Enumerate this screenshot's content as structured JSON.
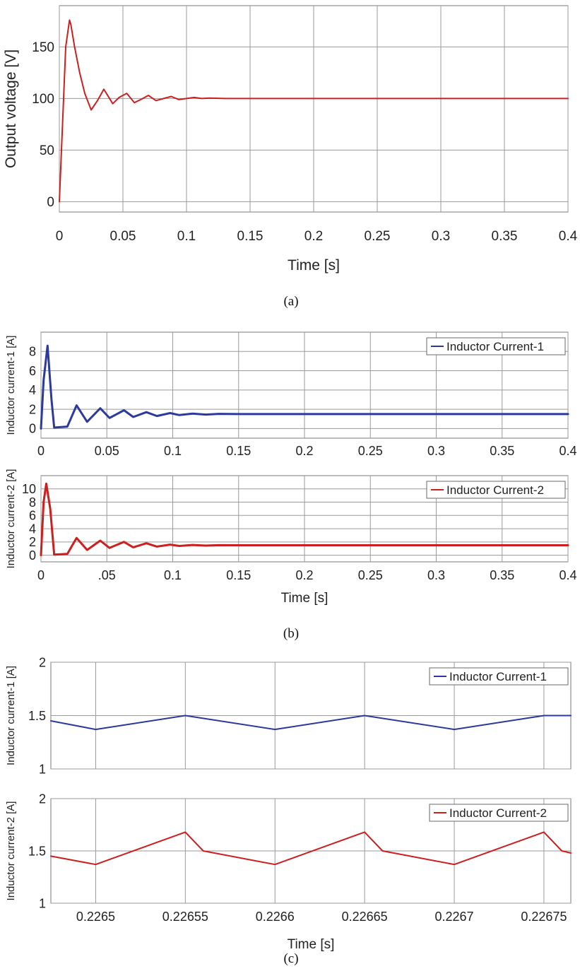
{
  "captions": {
    "a": "(a)",
    "b": "(b)",
    "c": "(c)"
  },
  "colors": {
    "red": "#cc1f1f",
    "blue": "#2b3a9c"
  },
  "chart_data": [
    {
      "id": "a",
      "type": "line",
      "title": "",
      "xlabel": "Time [s]",
      "ylabel": "Output voltage [V]",
      "xlim": [
        0,
        0.4
      ],
      "ylim": [
        -10,
        190
      ],
      "xticks": [
        0,
        0.05,
        0.1,
        0.15,
        0.2,
        0.25,
        0.3,
        0.35,
        0.4
      ],
      "xtick_labels": [
        "0",
        "0.05",
        "0.1",
        "0.15",
        "0.2",
        "0.25",
        "0.3",
        "0.35",
        "0.4"
      ],
      "yticks": [
        0,
        50,
        100,
        150
      ],
      "ytick_labels": [
        "0",
        "50",
        "100",
        "150"
      ],
      "legend": null,
      "series": [
        {
          "name": "Output voltage",
          "color": "#cc1f1f",
          "x": [
            0,
            0.002,
            0.005,
            0.008,
            0.009,
            0.012,
            0.016,
            0.02,
            0.025,
            0.03,
            0.035,
            0.042,
            0.047,
            0.053,
            0.059,
            0.064,
            0.07,
            0.076,
            0.082,
            0.088,
            0.094,
            0.1,
            0.106,
            0.112,
            0.118,
            0.13,
            0.15,
            0.2,
            0.3,
            0.4
          ],
          "y": [
            0,
            60,
            150,
            176,
            172,
            150,
            125,
            105,
            89,
            98,
            109,
            95,
            101,
            105,
            96,
            99,
            103,
            98,
            100,
            102,
            99,
            100,
            101,
            100,
            100.5,
            100,
            100,
            100,
            100,
            100
          ]
        }
      ]
    },
    {
      "id": "b1",
      "type": "line",
      "title": "",
      "xlabel": "",
      "ylabel": "Inductor current-1 [A]",
      "xlim": [
        0,
        0.4
      ],
      "ylim": [
        -1,
        10
      ],
      "xticks": [
        0,
        0.05,
        0.1,
        0.15,
        0.2,
        0.25,
        0.3,
        0.35,
        0.4
      ],
      "xtick_labels": [
        "0",
        "0.05",
        "0.1",
        "0.15",
        "0.2",
        "0.25",
        "0.3",
        "0.35",
        "0.4"
      ],
      "yticks": [
        0,
        2,
        4,
        6,
        8
      ],
      "ytick_labels": [
        "0",
        "2",
        "4",
        "6",
        "8"
      ],
      "legend": "Inductor Current-1",
      "legend_position": "top-right",
      "series": [
        {
          "name": "Inductor Current-1",
          "color": "#2b3a9c",
          "x": [
            0,
            0.002,
            0.005,
            0.008,
            0.01,
            0.02,
            0.027,
            0.035,
            0.045,
            0.052,
            0.063,
            0.07,
            0.08,
            0.088,
            0.098,
            0.105,
            0.115,
            0.125,
            0.135,
            0.15,
            0.2,
            0.3,
            0.4
          ],
          "y": [
            0,
            5,
            8.6,
            3,
            0.1,
            0.2,
            2.4,
            0.7,
            2.1,
            1.1,
            1.9,
            1.2,
            1.7,
            1.3,
            1.6,
            1.4,
            1.55,
            1.45,
            1.52,
            1.5,
            1.5,
            1.5,
            1.5
          ]
        }
      ]
    },
    {
      "id": "b2",
      "type": "line",
      "title": "",
      "xlabel": "Time [s]",
      "ylabel": "Inductor current-2 [A]",
      "xlim": [
        0,
        0.4
      ],
      "ylim": [
        -1,
        12
      ],
      "xticks": [
        0,
        0.05,
        0.1,
        0.15,
        0.2,
        0.25,
        0.3,
        0.35,
        0.4
      ],
      "xtick_labels": [
        "0",
        ".05",
        "0.1",
        "0.15",
        "0.2",
        "0.25",
        "0.3",
        "0.35",
        "0.4"
      ],
      "yticks": [
        0,
        2,
        4,
        6,
        8,
        10
      ],
      "ytick_labels": [
        "0",
        "2",
        "4",
        "6",
        "8",
        "10"
      ],
      "legend": "Inductor Current-2",
      "legend_position": "top-right",
      "series": [
        {
          "name": "Inductor Current-2",
          "color": "#cc1f1f",
          "x": [
            0,
            0.002,
            0.004,
            0.007,
            0.01,
            0.02,
            0.027,
            0.035,
            0.045,
            0.052,
            0.063,
            0.07,
            0.08,
            0.088,
            0.098,
            0.105,
            0.115,
            0.125,
            0.135,
            0.15,
            0.2,
            0.3,
            0.4
          ],
          "y": [
            0,
            8,
            10.8,
            7,
            0.1,
            0.2,
            2.6,
            0.8,
            2.2,
            1.1,
            2.0,
            1.2,
            1.8,
            1.3,
            1.6,
            1.4,
            1.55,
            1.45,
            1.52,
            1.5,
            1.5,
            1.5,
            1.5
          ]
        }
      ]
    },
    {
      "id": "c1",
      "type": "line",
      "title": "",
      "xlabel": "",
      "ylabel": "Inductor current-1 [A]",
      "xlim": [
        0.226475,
        0.226765
      ],
      "ylim": [
        1,
        2
      ],
      "xticks": [
        0.2265,
        0.22655,
        0.2266,
        0.22665,
        0.2267,
        0.22675
      ],
      "xtick_labels": [],
      "yticks": [
        1,
        1.5,
        2
      ],
      "ytick_labels": [
        "1",
        "1.5",
        "2"
      ],
      "legend": "Inductor Current-1",
      "legend_position": "top-right",
      "series": [
        {
          "name": "Inductor Current-1",
          "color": "#2b3a9c",
          "x": [
            0.226475,
            0.2265,
            0.22655,
            0.2266,
            0.22665,
            0.2267,
            0.22675,
            0.226765
          ],
          "y": [
            1.45,
            1.37,
            1.5,
            1.37,
            1.5,
            1.37,
            1.5,
            1.5
          ]
        }
      ]
    },
    {
      "id": "c2",
      "type": "line",
      "title": "",
      "xlabel": "Time [s]",
      "ylabel": "Inductor current-2 [A]",
      "xlim": [
        0.226475,
        0.226765
      ],
      "ylim": [
        1,
        2
      ],
      "xticks": [
        0.2265,
        0.22655,
        0.2266,
        0.22665,
        0.2267,
        0.22675
      ],
      "xtick_labels": [
        "0.2265",
        "0.22655",
        "0.2266",
        "0.22665",
        "0.2267",
        "0.22675"
      ],
      "yticks": [
        1,
        1.5,
        2
      ],
      "ytick_labels": [
        "1",
        "1.5",
        "2"
      ],
      "legend": "Inductor Current-2",
      "legend_position": "top-right",
      "series": [
        {
          "name": "Inductor Current-2",
          "color": "#cc1f1f",
          "x": [
            0.226475,
            0.2265,
            0.22655,
            0.22656,
            0.2266,
            0.22665,
            0.22666,
            0.2267,
            0.22675,
            0.22676,
            0.226765
          ],
          "y": [
            1.45,
            1.37,
            1.68,
            1.5,
            1.37,
            1.68,
            1.5,
            1.37,
            1.68,
            1.5,
            1.48
          ]
        }
      ]
    }
  ]
}
